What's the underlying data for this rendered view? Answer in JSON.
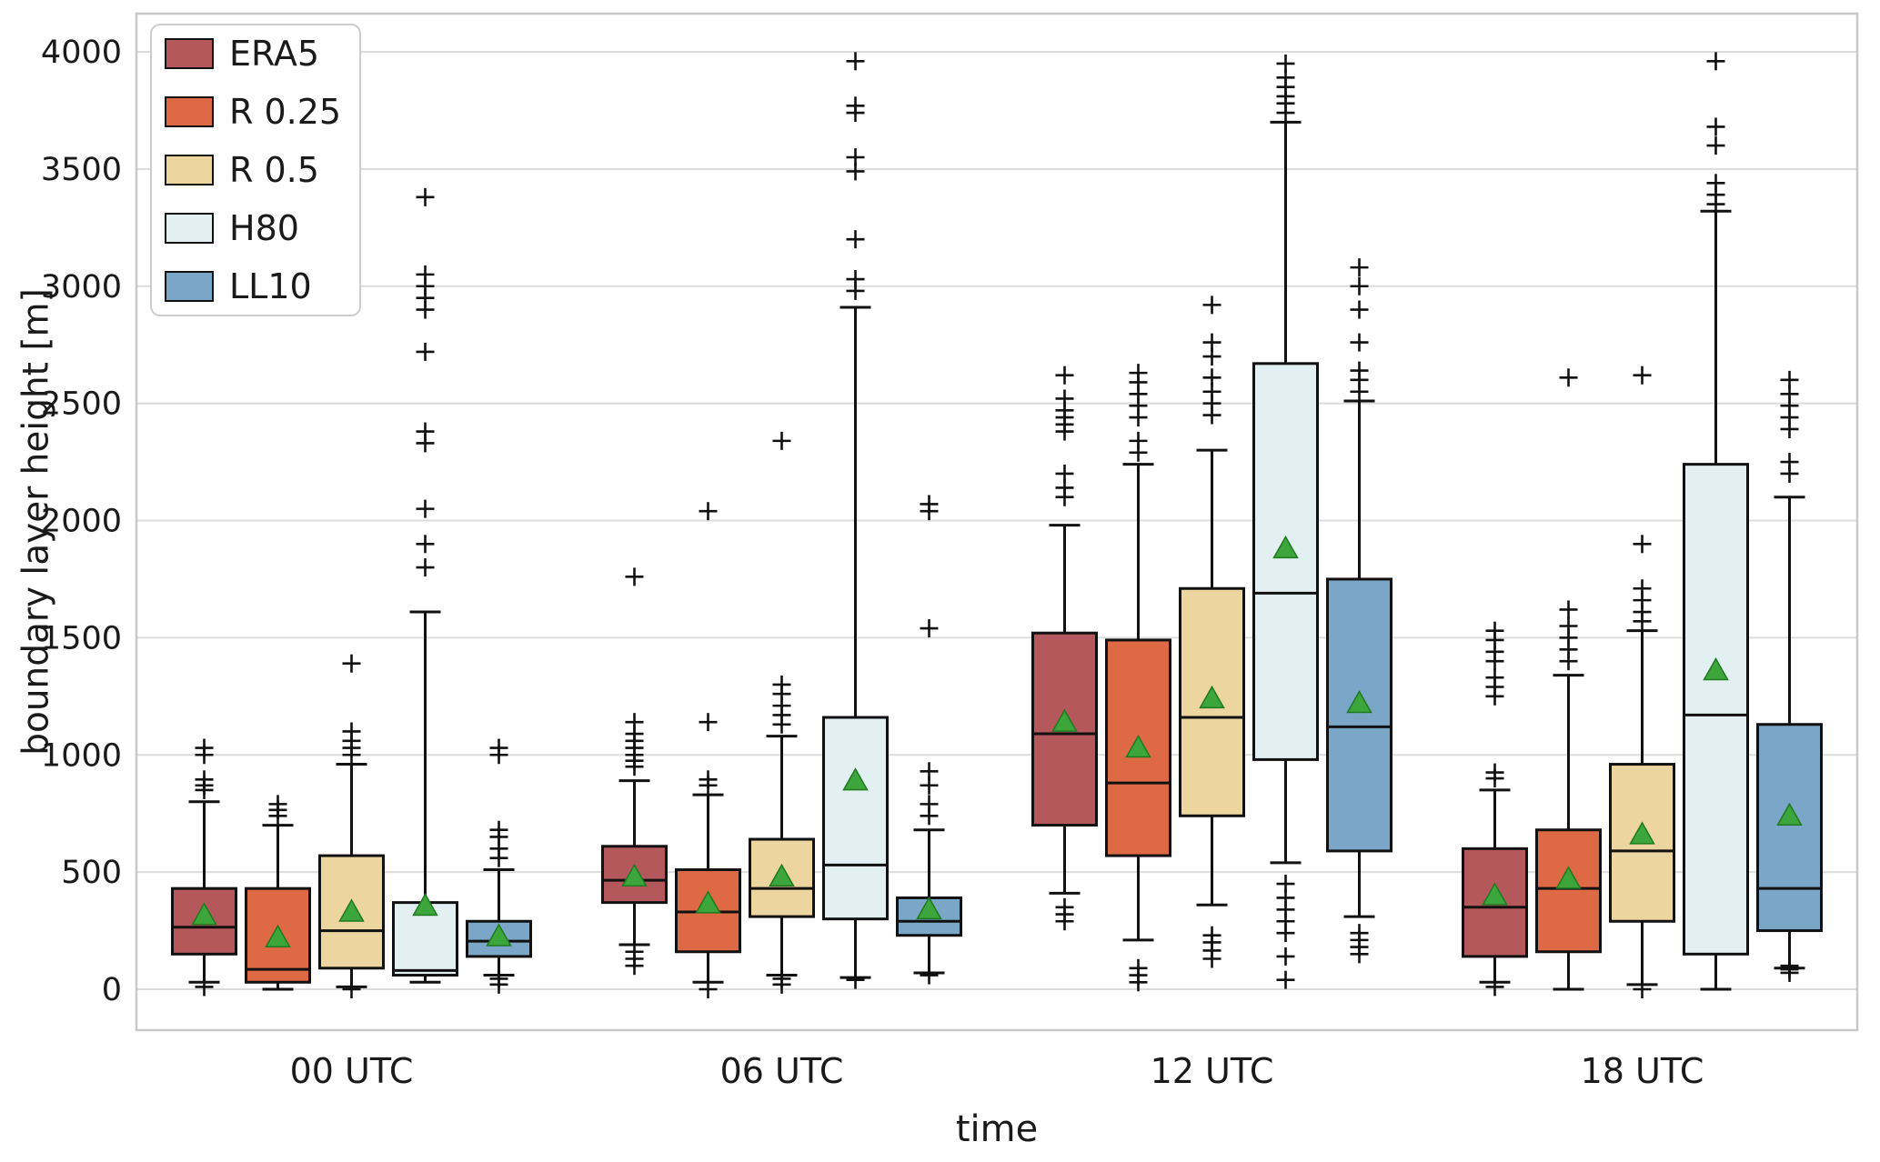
{
  "figure": {
    "xlabel": "time",
    "ylabel": "boundary layer height [m]"
  },
  "chart_data": {
    "type": "boxplot",
    "title": "",
    "xlabel": "time",
    "ylabel": "boundary layer height [m]",
    "categories": [
      "00 UTC",
      "06 UTC",
      "12 UTC",
      "18 UTC"
    ],
    "yticks": [
      0,
      500,
      1000,
      1500,
      2000,
      2500,
      3000,
      3500,
      4000
    ],
    "ylim": [
      -175,
      4160
    ],
    "grid": "horizontal",
    "legend_position": "upper left",
    "mean_marker": "triangle",
    "mean_marker_color": "#3ca53c",
    "flier_marker": "plus",
    "box_edge_color": "#111111",
    "grid_color": "#dcdcdc",
    "frame_color": "#c8c8c8",
    "series": [
      {
        "name": "ERA5",
        "color": "#b5585c",
        "boxes": [
          {
            "whislo": 30,
            "q1": 150,
            "med": 265,
            "q3": 430,
            "whishi": 800,
            "mean": 315,
            "fliers": [
              850,
              870,
              895,
              1000,
              1030,
              10
            ]
          },
          {
            "whislo": 190,
            "q1": 370,
            "med": 465,
            "q3": 610,
            "whishi": 890,
            "mean": 480,
            "fliers": [
              950,
              975,
              1000,
              1030,
              1060,
              1090,
              1140,
              1760,
              100,
              130,
              160
            ]
          },
          {
            "whislo": 410,
            "q1": 700,
            "med": 1090,
            "q3": 1520,
            "whishi": 1980,
            "mean": 1140,
            "fliers": [
              2100,
              2140,
              2200,
              2380,
              2410,
              2440,
              2470,
              2520,
              2620,
              290,
              320,
              350
            ]
          },
          {
            "whislo": 30,
            "q1": 140,
            "med": 350,
            "q3": 600,
            "whishi": 850,
            "mean": 400,
            "fliers": [
              900,
              925,
              1250,
              1290,
              1330,
              1400,
              1440,
              1490,
              1530,
              10
            ]
          }
        ]
      },
      {
        "name": "R 0.25",
        "color": "#de6a45",
        "boxes": [
          {
            "whislo": 0,
            "q1": 30,
            "med": 85,
            "q3": 430,
            "whishi": 700,
            "mean": 220,
            "fliers": [
              740,
              765,
              790
            ]
          },
          {
            "whislo": 30,
            "q1": 160,
            "med": 330,
            "q3": 510,
            "whishi": 830,
            "mean": 365,
            "fliers": [
              870,
              895,
              1140,
              2040,
              0
            ]
          },
          {
            "whislo": 210,
            "q1": 570,
            "med": 880,
            "q3": 1490,
            "whishi": 2240,
            "mean": 1030,
            "fliers": [
              2290,
              2340,
              2440,
              2490,
              2540,
              2590,
              2630,
              30,
              60,
              90
            ]
          },
          {
            "whislo": 0,
            "q1": 160,
            "med": 430,
            "q3": 680,
            "whishi": 1340,
            "mean": 470,
            "fliers": [
              1400,
              1450,
              1500,
              1550,
              1620,
              2610
            ]
          }
        ]
      },
      {
        "name": "R 0.5",
        "color": "#ecd59e",
        "boxes": [
          {
            "whislo": 10,
            "q1": 90,
            "med": 250,
            "q3": 570,
            "whishi": 960,
            "mean": 330,
            "fliers": [
              1000,
              1030,
              1060,
              1100,
              1390,
              0
            ]
          },
          {
            "whislo": 60,
            "q1": 310,
            "med": 430,
            "q3": 640,
            "whishi": 1080,
            "mean": 480,
            "fliers": [
              1130,
              1170,
              1210,
              1260,
              1300,
              2340,
              20,
              45
            ]
          },
          {
            "whislo": 360,
            "q1": 740,
            "med": 1160,
            "q3": 1710,
            "whishi": 2300,
            "mean": 1240,
            "fliers": [
              2450,
              2500,
              2550,
              2610,
              2700,
              2760,
              2920,
              130,
              165,
              200,
              230
            ]
          },
          {
            "whislo": 20,
            "q1": 290,
            "med": 590,
            "q3": 960,
            "whishi": 1530,
            "mean": 660,
            "fliers": [
              1570,
              1610,
              1660,
              1710,
              1900,
              2620,
              0
            ]
          }
        ]
      },
      {
        "name": "H80",
        "color": "#e3f0f2",
        "boxes": [
          {
            "whislo": 30,
            "q1": 60,
            "med": 80,
            "q3": 370,
            "whishi": 1610,
            "mean": 355,
            "fliers": [
              1800,
              1900,
              2050,
              2330,
              2380,
              2720,
              2900,
              2950,
              3000,
              3050,
              3380
            ]
          },
          {
            "whislo": 50,
            "q1": 300,
            "med": 530,
            "q3": 1160,
            "whishi": 2910,
            "mean": 890,
            "fliers": [
              2980,
              3030,
              3200,
              3490,
              3550,
              3740,
              3770,
              3960,
              40
            ]
          },
          {
            "whislo": 540,
            "q1": 980,
            "med": 1690,
            "q3": 2670,
            "whishi": 3700,
            "mean": 1880,
            "fliers": [
              3740,
              3780,
              3810,
              3850,
              3890,
              3950,
              40,
              140,
              240,
              290,
              340,
              390,
              450
            ]
          },
          {
            "whislo": 0,
            "q1": 150,
            "med": 1170,
            "q3": 2240,
            "whishi": 3320,
            "mean": 1360,
            "fliers": [
              3350,
              3390,
              3440,
              3600,
              3680,
              3960
            ]
          }
        ]
      },
      {
        "name": "LL10",
        "color": "#7aa6c7",
        "boxes": [
          {
            "whislo": 60,
            "q1": 140,
            "med": 205,
            "q3": 290,
            "whishi": 510,
            "mean": 225,
            "fliers": [
              560,
              600,
              650,
              680,
              1000,
              1030,
              20,
              45
            ]
          },
          {
            "whislo": 70,
            "q1": 230,
            "med": 290,
            "q3": 390,
            "whishi": 680,
            "mean": 340,
            "fliers": [
              740,
              790,
              870,
              930,
              1540,
              2040,
              2070,
              60
            ]
          },
          {
            "whislo": 310,
            "q1": 590,
            "med": 1120,
            "q3": 1750,
            "whishi": 2510,
            "mean": 1220,
            "fliers": [
              2550,
              2600,
              2640,
              2760,
              2900,
              3000,
              3080,
              150,
              180,
              210,
              240
            ]
          },
          {
            "whislo": 90,
            "q1": 250,
            "med": 430,
            "q3": 1130,
            "whishi": 2100,
            "mean": 740,
            "fliers": [
              2200,
              2250,
              2390,
              2440,
              2490,
              2540,
              2600,
              70,
              85,
              100
            ]
          }
        ]
      }
    ]
  }
}
